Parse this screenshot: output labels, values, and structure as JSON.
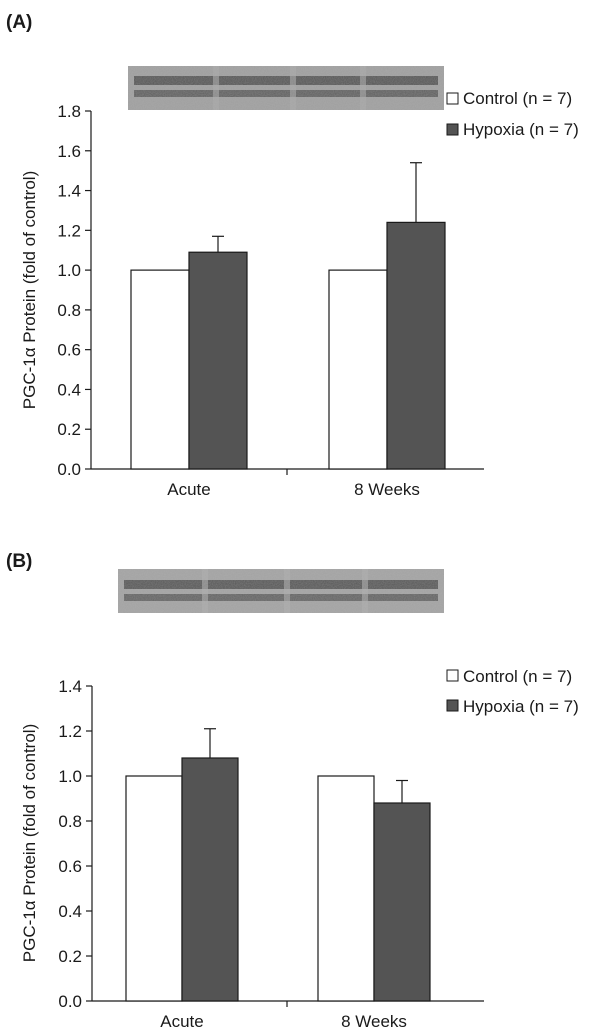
{
  "colors": {
    "control": "#ffffff",
    "hypoxia": "#545454",
    "axis": "#1a1a1a"
  },
  "chart_data": [
    {
      "type": "bar",
      "panel_label": "(A)",
      "title": "",
      "xlabel": "",
      "ylabel": "PGC-1α Protein (fold of control)",
      "categories": [
        "Acute",
        "8 Weeks"
      ],
      "series": [
        {
          "name": "Control (n = 7)",
          "values": [
            1.0,
            1.0
          ],
          "errors": [
            0,
            0
          ]
        },
        {
          "name": "Hypoxia (n = 7)",
          "values": [
            1.09,
            1.24
          ],
          "errors": [
            0.08,
            0.3
          ]
        }
      ],
      "ylim": [
        0,
        1.8
      ],
      "yticks": [
        "0.0",
        "0.2",
        "0.4",
        "0.6",
        "0.8",
        "1.0",
        "1.2",
        "1.4",
        "1.6",
        "1.8"
      ],
      "grid": false,
      "legend": "top-right"
    },
    {
      "type": "bar",
      "panel_label": "(B)",
      "title": "",
      "xlabel": "",
      "ylabel": "PGC-1α Protein (fold of control)",
      "categories": [
        "Acute",
        "8 Weeks"
      ],
      "series": [
        {
          "name": "Control (n = 7)",
          "values": [
            1.0,
            1.0
          ],
          "errors": [
            0,
            0
          ]
        },
        {
          "name": "Hypoxia (n = 7)",
          "values": [
            1.08,
            0.88
          ],
          "errors": [
            0.13,
            0.1
          ]
        }
      ],
      "ylim": [
        0,
        1.4
      ],
      "yticks": [
        "0.0",
        "0.2",
        "0.4",
        "0.6",
        "0.8",
        "1.0",
        "1.2",
        "1.4"
      ],
      "grid": false,
      "legend": "top-right"
    }
  ]
}
